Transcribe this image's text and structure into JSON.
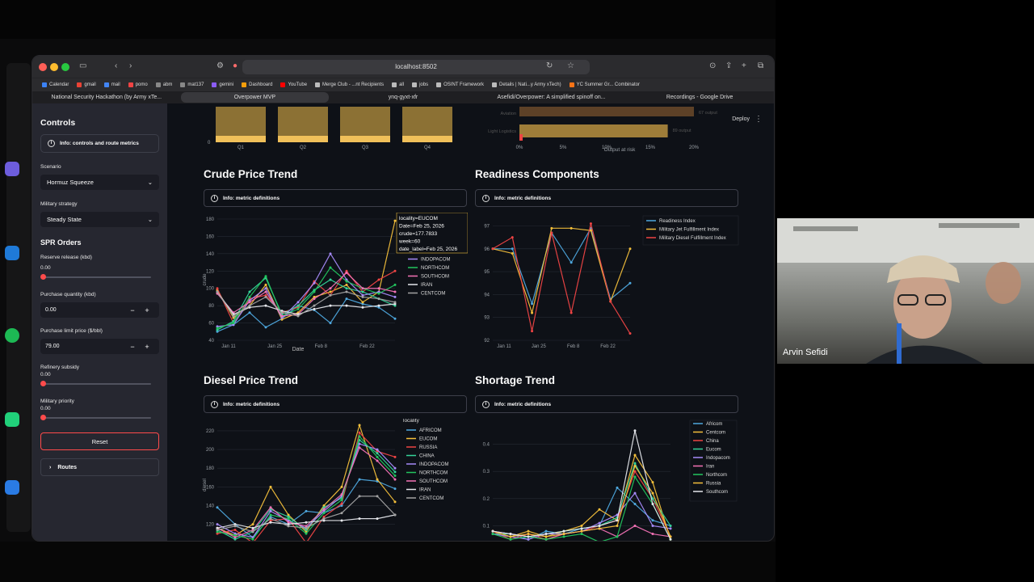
{
  "browser": {
    "url": "localhost:8502",
    "bookmarks": [
      "Calendar",
      "gmail",
      "mail",
      "pomo",
      "abm",
      "mat137",
      "gemini",
      "Dashboard",
      "YouTube",
      "Merge Club - ...nt Recipients",
      "all",
      "jobs",
      "OSINT Framework",
      "Details | Nati...y Army xTech)",
      "YC Summer Gr... Combinator"
    ],
    "tabs": [
      "National Security Hackathon (by Army xTe...",
      "Overpower MVP",
      "ynq-gyxt-xfr",
      "Asefidi/Overpower: A simplified spinoff on...",
      "Recordings - Google Drive"
    ],
    "active_tab_index": 1
  },
  "sidebar": {
    "heading": "Controls",
    "info_label": "Info: controls and route metrics",
    "scenario_label": "Scenario",
    "scenario_value": "Hormuz Squeeze",
    "strategy_label": "Military strategy",
    "strategy_value": "Steady State",
    "spr_heading": "SPR Orders",
    "reserve_label": "Reserve release (kbd)",
    "reserve_value": "0.00",
    "purchase_qty_label": "Purchase quantity (kbd)",
    "purchase_qty_value": "0.00",
    "purchase_limit_label": "Purchase limit price ($/bbl)",
    "purchase_limit_value": "79.00",
    "refinery_label": "Refinery subsidy",
    "refinery_value": "0.00",
    "priority_label": "Military priority",
    "priority_value": "0.00",
    "reset_label": "Reset",
    "routes_label": "Routes"
  },
  "header": {
    "deploy_label": "Deploy"
  },
  "sections": {
    "crude_title": "Crude Price Trend",
    "readiness_title": "Readiness Components",
    "diesel_title": "Diesel Price Trend",
    "shortage_title": "Shortage Trend",
    "info_metric": "Info: metric definitions"
  },
  "top_partial": {
    "quarters": [
      "Q1",
      "Q2",
      "Q3",
      "Q4"
    ],
    "quarter_axis_zero": "0",
    "quarter_values": [
      1.0,
      1.0,
      1.0,
      1.0
    ],
    "bar_color": "#f0c05a",
    "output_rows": [
      "Aviation",
      "Light Logistics"
    ],
    "output_annotations": [
      "67 output",
      "89 output"
    ],
    "output_values": [
      0.2,
      0.17
    ],
    "output_ticks": [
      "0%",
      "5%",
      "10%",
      "15%",
      "20%"
    ],
    "output_axis_label": "Output at risk"
  },
  "colors": {
    "AFRICOM": "#4ea8de",
    "EUCOM": "#f4c03b",
    "RUSSIA": "#ef4444",
    "CHINA": "#34d399",
    "INDOPACOM": "#a78bfa",
    "NORTHCOM": "#22c55e",
    "SOUTHCOM": "#f472b6",
    "IRAN": "#e5e7eb",
    "CENTCOM": "#a3a3a3",
    "readiness": "#4ea8de",
    "jet": "#f4c03b",
    "diesel": "#ef4444"
  },
  "chart_data": [
    {
      "type": "line",
      "name": "crude",
      "ylabel": "crude",
      "xlabel": "Date",
      "x_ticks": [
        "Jan 11",
        "Jan 25",
        "Feb 8",
        "Feb 22"
      ],
      "y_ticks": [
        40,
        60,
        80,
        100,
        120,
        140,
        160,
        180
      ],
      "ylim": [
        40,
        180
      ],
      "legend_title": "locality",
      "legend_visible": [
        "CHINA",
        "INDOPACOM",
        "NORTHCOM",
        "SOUTHCOM",
        "IRAN",
        "CENTCOM"
      ],
      "tooltip": [
        "locality=EUCOM",
        "Date=Feb 25, 2026",
        "crude=177.7833",
        "week=60",
        "date_label=Feb 25, 2026"
      ],
      "series": [
        {
          "name": "AFRICOM",
          "values": [
            50,
            58,
            72,
            55,
            65,
            80,
            75,
            60,
            88,
            82,
            78,
            65
          ]
        },
        {
          "name": "EUCOM",
          "values": [
            98,
            66,
            80,
            104,
            64,
            72,
            90,
            96,
            104,
            84,
            96,
            178
          ]
        },
        {
          "name": "RUSSIA",
          "values": [
            100,
            60,
            88,
            92,
            72,
            78,
            108,
            92,
            120,
            96,
            110,
            120
          ]
        },
        {
          "name": "CHINA",
          "values": [
            52,
            62,
            96,
            112,
            70,
            80,
            98,
            110,
            100,
            96,
            88,
            80
          ]
        },
        {
          "name": "INDOPACOM",
          "values": [
            56,
            58,
            86,
            100,
            66,
            84,
            106,
            140,
            110,
            92,
            96,
            90
          ]
        },
        {
          "name": "NORTHCOM",
          "values": [
            54,
            60,
            90,
            114,
            68,
            76,
            96,
            124,
            108,
            100,
            94,
            104
          ]
        },
        {
          "name": "SOUTHCOM",
          "values": [
            94,
            72,
            84,
            96,
            68,
            70,
            88,
            100,
            118,
            100,
            100,
            96
          ]
        },
        {
          "name": "IRAN",
          "values": [
            96,
            70,
            78,
            80,
            74,
            70,
            76,
            80,
            80,
            78,
            80,
            82
          ]
        },
        {
          "name": "CENTCOM",
          "values": [
            96,
            68,
            80,
            90,
            72,
            68,
            80,
            92,
            96,
            90,
            88,
            84
          ]
        }
      ]
    },
    {
      "type": "line",
      "name": "readiness",
      "x_ticks": [
        "Jan 11",
        "Jan 25",
        "Feb 8",
        "Feb 22"
      ],
      "y_ticks": [
        92,
        93,
        94,
        95,
        96,
        97
      ],
      "ylim": [
        92,
        97.3
      ],
      "series": [
        {
          "name": "Readiness Index",
          "values": [
            96,
            96,
            93.6,
            96.7,
            95.4,
            96.9,
            93.8,
            94.5
          ]
        },
        {
          "name": "Military Jet Fulfillment Index",
          "values": [
            96,
            95.8,
            93.2,
            96.9,
            96.9,
            96.8,
            93.7,
            96
          ]
        },
        {
          "name": "Military Diesel Fulfillment Index",
          "values": [
            96,
            96.5,
            92.4,
            96.7,
            93.2,
            97.1,
            93.7,
            92.3
          ]
        }
      ]
    },
    {
      "type": "line",
      "name": "diesel",
      "ylabel": "diesel",
      "x_ticks": [],
      "y_ticks": [
        100,
        120,
        140,
        160,
        180,
        200,
        220
      ],
      "ylim": [
        98,
        226
      ],
      "legend_title": "locality",
      "series": [
        {
          "name": "AFRICOM",
          "values": [
            138,
            120,
            106,
            128,
            120,
            134,
            132,
            140,
            168,
            166,
            158
          ]
        },
        {
          "name": "EUCOM",
          "values": [
            116,
            108,
            120,
            160,
            130,
            112,
            140,
            160,
            226,
            168,
            144
          ]
        },
        {
          "name": "RUSSIA",
          "values": [
            110,
            114,
            100,
            124,
            126,
            100,
            128,
            142,
            218,
            198,
            192
          ]
        },
        {
          "name": "CHINA",
          "values": [
            114,
            104,
            112,
            136,
            128,
            114,
            138,
            148,
            210,
            196,
            176
          ]
        },
        {
          "name": "INDOPACOM",
          "values": [
            120,
            110,
            106,
            134,
            124,
            116,
            134,
            150,
            206,
            200,
            180
          ]
        },
        {
          "name": "NORTHCOM",
          "values": [
            112,
            108,
            104,
            130,
            126,
            110,
            132,
            146,
            214,
            192,
            172
          ]
        },
        {
          "name": "SOUTHCOM",
          "values": [
            116,
            106,
            114,
            138,
            122,
            118,
            136,
            152,
            202,
            188,
            168
          ]
        },
        {
          "name": "IRAN",
          "values": [
            116,
            120,
            116,
            122,
            120,
            122,
            124,
            124,
            126,
            126,
            130
          ]
        },
        {
          "name": "CENTCOM",
          "values": [
            114,
            118,
            112,
            126,
            118,
            116,
            126,
            132,
            150,
            150,
            130
          ]
        }
      ]
    },
    {
      "type": "line",
      "name": "shortage",
      "x_ticks": [],
      "y_ticks": [
        0.1,
        0.2,
        0.3,
        0.4
      ],
      "ylim": [
        0.03,
        0.47
      ],
      "series": [
        {
          "name": "Africom",
          "values": [
            0.08,
            0.07,
            0.05,
            0.08,
            0.07,
            0.09,
            0.1,
            0.24,
            0.18,
            0.12,
            0.1
          ]
        },
        {
          "name": "Centcom",
          "values": [
            0.08,
            0.06,
            0.08,
            0.06,
            0.08,
            0.1,
            0.16,
            0.12,
            0.36,
            0.26,
            0.05
          ]
        },
        {
          "name": "China",
          "values": [
            0.08,
            0.05,
            0.07,
            0.05,
            0.07,
            0.08,
            0.1,
            0.12,
            0.3,
            0.2,
            0.06
          ]
        },
        {
          "name": "Eucom",
          "values": [
            0.07,
            0.07,
            0.06,
            0.07,
            0.08,
            0.09,
            0.1,
            0.13,
            0.33,
            0.2,
            0.1
          ]
        },
        {
          "name": "Indopacom",
          "values": [
            0.07,
            0.06,
            0.05,
            0.07,
            0.07,
            0.08,
            0.11,
            0.14,
            0.22,
            0.1,
            0.09
          ]
        },
        {
          "name": "Iran",
          "values": [
            0.08,
            0.07,
            0.06,
            0.05,
            0.07,
            0.08,
            0.09,
            0.06,
            0.1,
            0.07,
            0.06
          ]
        },
        {
          "name": "Northcom",
          "values": [
            0.07,
            0.05,
            0.06,
            0.05,
            0.06,
            0.07,
            0.04,
            0.06,
            0.28,
            0.18,
            0.05
          ]
        },
        {
          "name": "Russia",
          "values": [
            0.08,
            0.06,
            0.07,
            0.06,
            0.07,
            0.08,
            0.09,
            0.1,
            0.32,
            0.22,
            0.06
          ]
        },
        {
          "name": "Southcom",
          "values": [
            0.08,
            0.07,
            0.06,
            0.07,
            0.08,
            0.09,
            0.1,
            0.12,
            0.45,
            0.18,
            0.05
          ]
        }
      ]
    }
  ],
  "webcam": {
    "name_label": "Arvin Sefidi"
  }
}
